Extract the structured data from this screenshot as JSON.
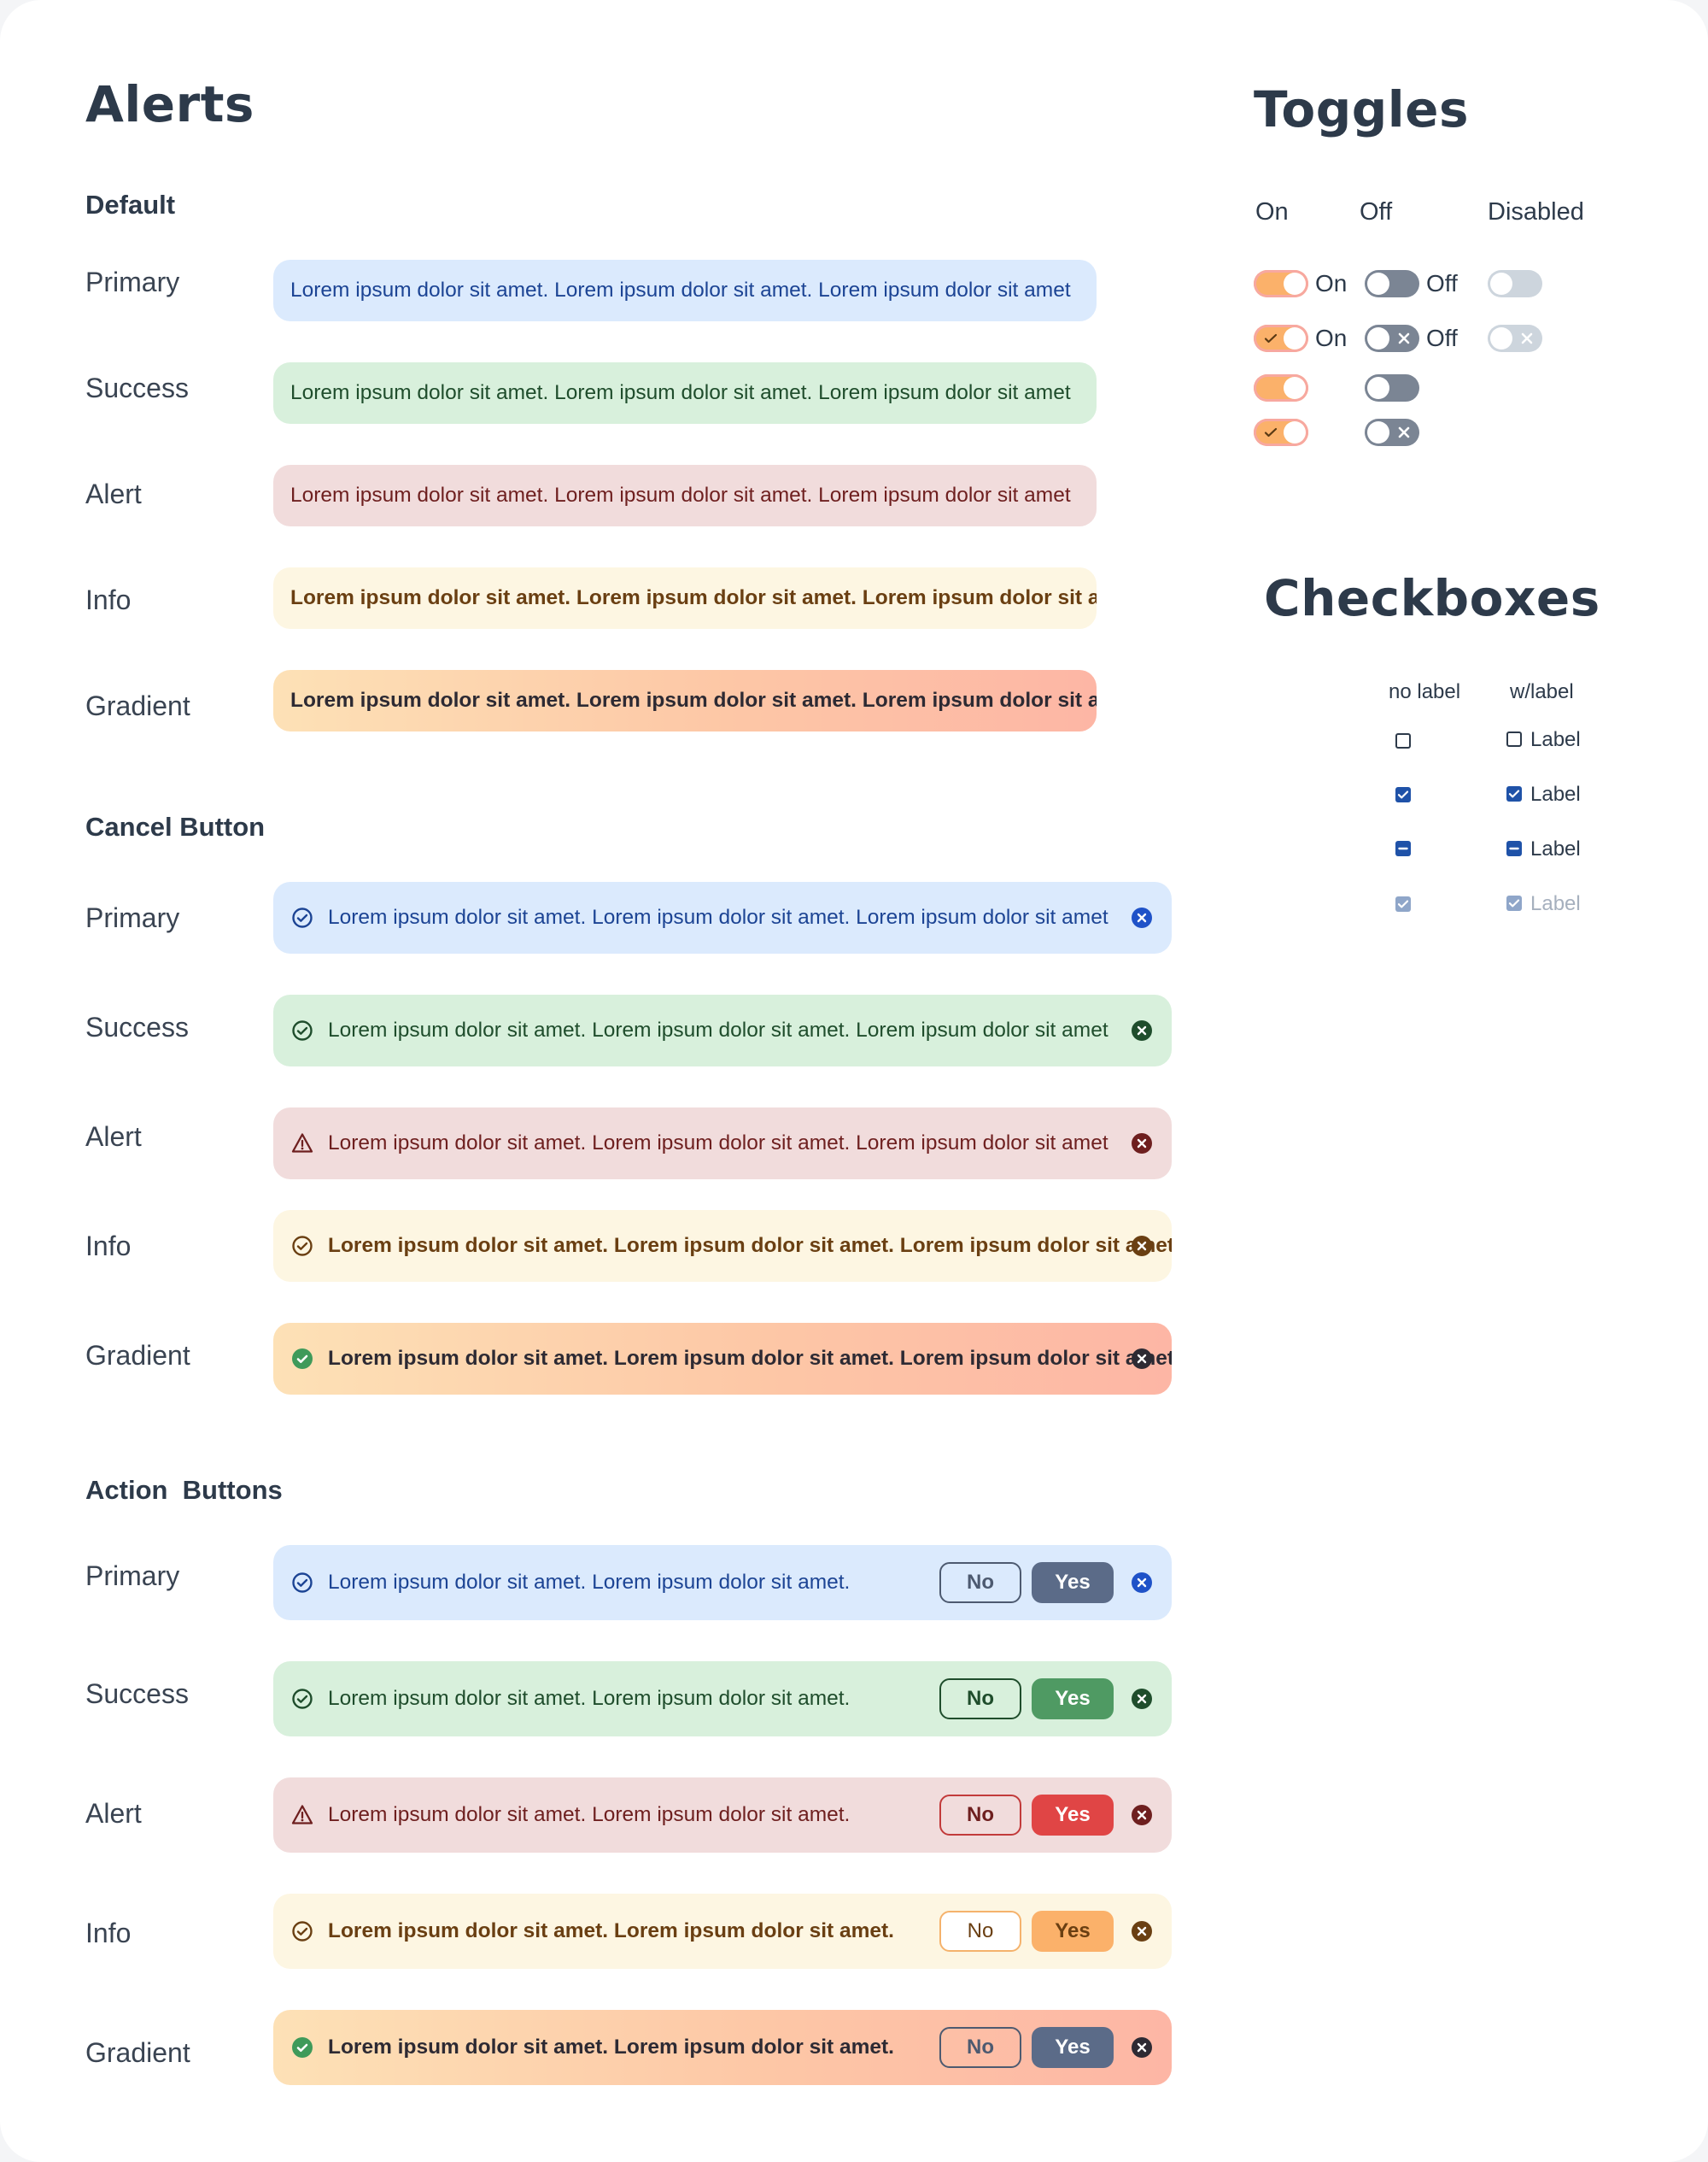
{
  "alerts": {
    "title": "Alerts",
    "sections": {
      "default": "Default",
      "cancel": "Cancel Button",
      "action": "Action  Buttons"
    },
    "variants": {
      "primary": "Primary",
      "success": "Success",
      "alert": "Alert",
      "info": "Info",
      "gradient": "Gradient"
    },
    "long_message": "Lorem ipsum dolor sit amet. Lorem ipsum dolor sit amet. Lorem ipsum dolor sit amet",
    "short_message": "Lorem ipsum dolor sit amet. Lorem ipsum dolor sit amet.",
    "no_label": "No",
    "yes_label": "Yes"
  },
  "colors": {
    "primary_bg": "#dbeafd",
    "success_bg": "#d8f0dc",
    "alert_bg": "#f1dcdc",
    "info_bg": "#fdf6e2",
    "gradient_from": "#fde1b6",
    "gradient_to": "#fdb6a5",
    "toggle_on": "#fbb16a",
    "toggle_off": "#7b8594",
    "toggle_disabled": "#cdd5dd",
    "checkbox": "#1f52a8"
  },
  "toggles": {
    "title": "Toggles",
    "col_on": "On",
    "col_off": "Off",
    "col_disabled": "Disabled",
    "on_label": "On",
    "off_label": "Off"
  },
  "checkboxes": {
    "title": "Checkboxes",
    "col_no_label": "no label",
    "col_with_label": "w/label",
    "label": "Label"
  }
}
